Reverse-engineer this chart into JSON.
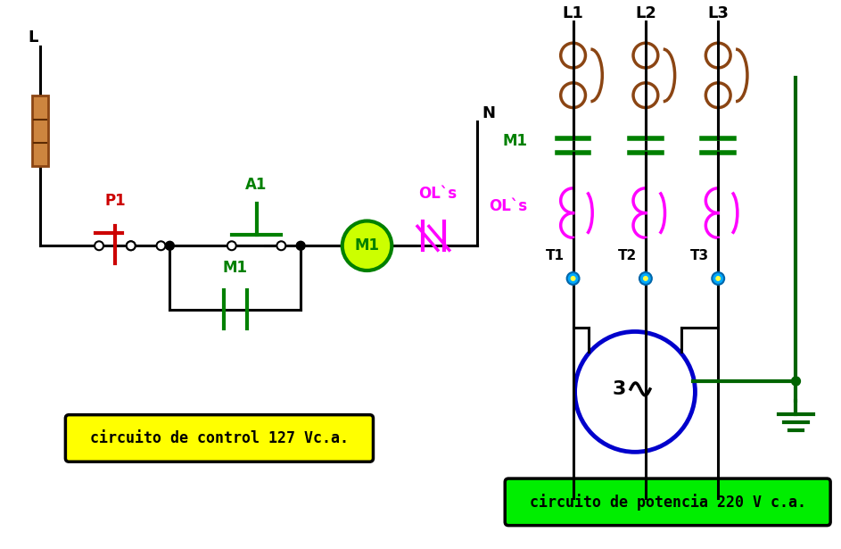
{
  "bg_color": "#ffffff",
  "black": "#000000",
  "green": "#008000",
  "dark_green": "#006400",
  "red": "#cc0000",
  "brown": "#8B4513",
  "magenta": "#ff00ff",
  "yellow": "#ffff00",
  "lime": "#00ee00",
  "blue": "#0000cc",
  "cyan": "#00aaff",
  "label_L": "L",
  "label_N": "N",
  "label_P1": "P1",
  "label_A1": "A1",
  "label_M1": "M1",
  "label_OLs_ctrl": "OL`s",
  "label_L1": "L1",
  "label_L2": "L2",
  "label_L3": "L3",
  "label_T1": "T1",
  "label_T2": "T2",
  "label_T3": "T3",
  "label_M1_power": "M1",
  "label_OLs_power": "OL`s",
  "label_control": "circuito de control 127 Vc.a.",
  "label_power": "circuito de potencia 220 V c.a.",
  "label_3": "3"
}
